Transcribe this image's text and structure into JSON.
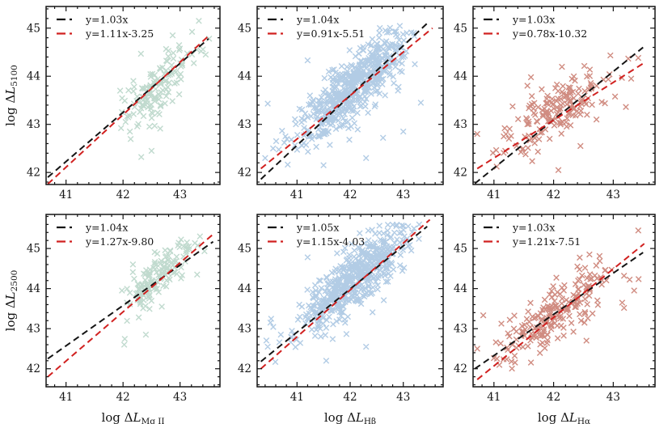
{
  "figure": {
    "background": "#ffffff"
  },
  "chart_data": {
    "type": "scatter",
    "title": "",
    "grid": false,
    "legend_position": "upper-left-inside",
    "colors": {
      "black_line": "#141414",
      "red_line": "#d12120",
      "axis": "#141414",
      "green_marker": "#b5d4c6",
      "blue_marker": "#a5c3e1",
      "red_marker": "#c8786b"
    },
    "row_ylabels": [
      {
        "prefix": "log Δ",
        "symbol": "L",
        "subscript": "5100"
      },
      {
        "prefix": "log Δ",
        "symbol": "L",
        "subscript": "2500"
      }
    ],
    "col_xlabels": [
      {
        "prefix": "log Δ",
        "symbol": "L",
        "subscript": "Mg II"
      },
      {
        "prefix": "log Δ",
        "symbol": "L",
        "subscript": "Hβ"
      },
      {
        "prefix": "log Δ",
        "symbol": "L",
        "subscript": "Hα"
      }
    ],
    "panels": [
      {
        "id": "top-left",
        "row": 0,
        "col": 0,
        "xlim": [
          40.65,
          43.7
        ],
        "ylim": [
          41.75,
          45.45
        ],
        "x_ticks": [
          41,
          42,
          43
        ],
        "y_ticks": [
          42,
          43,
          44,
          45
        ],
        "minor_step": 0.2,
        "marker_color": "#b5d4c6",
        "legend": [
          {
            "label": "y=1.03x",
            "color": "#141414"
          },
          {
            "label": "y=1.11x-3.25",
            "color": "#d12120"
          }
        ],
        "lines": [
          {
            "color": "#141414",
            "x1": 40.68,
            "y1": 41.9,
            "x2": 43.5,
            "y2": 44.78
          },
          {
            "color": "#d12120",
            "x1": 40.68,
            "y1": 41.76,
            "x2": 43.52,
            "y2": 44.86
          }
        ],
        "scatter": {
          "seed": 7,
          "n": 140,
          "x_mean": 42.6,
          "x_sd": 0.33,
          "x_range": [
            41.95,
            43.52
          ],
          "slope": 1.1,
          "y_mid": 43.8,
          "noise_sd": 0.3,
          "y_range": [
            42.25,
            45.0
          ]
        },
        "extra_points": [
          [
            43.33,
            45.15
          ],
          [
            42.87,
            44.85
          ],
          [
            43.37,
            44.52
          ],
          [
            42.32,
            42.32
          ],
          [
            42.5,
            42.45
          ],
          [
            42.12,
            42.85
          ],
          [
            41.95,
            43.7
          ],
          [
            43.45,
            44.45
          ]
        ]
      },
      {
        "id": "top-middle",
        "row": 0,
        "col": 1,
        "xlim": [
          40.25,
          43.75
        ],
        "ylim": [
          41.75,
          45.45
        ],
        "x_ticks": [
          41,
          42,
          43
        ],
        "y_ticks": [
          42,
          43,
          44,
          45
        ],
        "minor_step": 0.2,
        "marker_color": "#a5c3e1",
        "legend": [
          {
            "label": "y=1.04x",
            "color": "#141414"
          },
          {
            "label": "y=0.91x-5.51",
            "color": "#d12120"
          }
        ],
        "lines": [
          {
            "color": "#141414",
            "x1": 40.32,
            "y1": 41.86,
            "x2": 43.45,
            "y2": 45.1
          },
          {
            "color": "#d12120",
            "x1": 40.32,
            "y1": 42.08,
            "x2": 43.55,
            "y2": 45.0
          }
        ],
        "scatter": {
          "seed": 13,
          "n": 560,
          "x_mean": 42.05,
          "x_sd": 0.52,
          "x_range": [
            40.35,
            43.3
          ],
          "slope": 0.95,
          "y_mid": 43.75,
          "noise_sd": 0.33,
          "y_range": [
            41.95,
            45.1
          ]
        },
        "extra_points": [
          [
            41.2,
            44.33
          ],
          [
            40.45,
            43.43
          ],
          [
            43.33,
            43.45
          ],
          [
            42.62,
            42.72
          ],
          [
            43.0,
            42.85
          ],
          [
            40.4,
            42.3
          ],
          [
            40.55,
            42.5
          ],
          [
            42.3,
            42.3
          ],
          [
            41.5,
            42.15
          ],
          [
            43.2,
            44.9
          ]
        ]
      },
      {
        "id": "top-right",
        "row": 0,
        "col": 2,
        "xlim": [
          40.65,
          43.7
        ],
        "ylim": [
          41.75,
          45.45
        ],
        "x_ticks": [
          41,
          42,
          43
        ],
        "y_ticks": [
          42,
          43,
          44,
          45
        ],
        "minor_step": 0.2,
        "marker_color": "#c8786b",
        "legend": [
          {
            "label": "y=1.03x",
            "color": "#141414"
          },
          {
            "label": "y=0.78x-10.32",
            "color": "#d12120"
          }
        ],
        "lines": [
          {
            "color": "#141414",
            "x1": 40.68,
            "y1": 41.77,
            "x2": 43.5,
            "y2": 44.6
          },
          {
            "color": "#d12120",
            "x1": 40.72,
            "y1": 42.08,
            "x2": 43.52,
            "y2": 44.28
          }
        ],
        "scatter": {
          "seed": 21,
          "n": 170,
          "x_mean": 42.05,
          "x_sd": 0.47,
          "x_range": [
            40.7,
            43.45
          ],
          "slope": 0.75,
          "y_mid": 43.3,
          "noise_sd": 0.33,
          "y_range": [
            41.95,
            44.45
          ]
        },
        "extra_points": [
          [
            40.72,
            42.8
          ],
          [
            41.62,
            43.98
          ],
          [
            42.08,
            42.05
          ],
          [
            43.3,
            43.95
          ],
          [
            41.18,
            42.92
          ],
          [
            42.45,
            42.55
          ],
          [
            43.42,
            44.38
          ]
        ]
      },
      {
        "id": "bottom-left",
        "row": 1,
        "col": 0,
        "xlim": [
          40.65,
          43.7
        ],
        "ylim": [
          41.55,
          45.85
        ],
        "x_ticks": [
          41,
          42,
          43
        ],
        "y_ticks": [
          42,
          43,
          44,
          45
        ],
        "minor_step": 0.2,
        "marker_color": "#b5d4c6",
        "legend": [
          {
            "label": "y=1.04x",
            "color": "#141414"
          },
          {
            "label": "y=1.27x-9.80",
            "color": "#d12120"
          }
        ],
        "lines": [
          {
            "color": "#141414",
            "x1": 40.68,
            "y1": 42.25,
            "x2": 43.58,
            "y2": 45.17
          },
          {
            "color": "#d12120",
            "x1": 40.68,
            "y1": 41.8,
            "x2": 43.6,
            "y2": 45.38
          }
        ],
        "scatter": {
          "seed": 29,
          "n": 145,
          "x_mean": 42.6,
          "x_sd": 0.32,
          "x_range": [
            41.98,
            43.5
          ],
          "slope": 1.15,
          "y_mid": 44.3,
          "noise_sd": 0.27,
          "y_range": [
            42.55,
            45.35
          ]
        },
        "extra_points": [
          [
            42.02,
            42.6
          ],
          [
            42.4,
            42.85
          ],
          [
            42.68,
            43.55
          ],
          [
            43.35,
            45.3
          ],
          [
            41.98,
            43.95
          ],
          [
            43.3,
            44.35
          ]
        ]
      },
      {
        "id": "bottom-middle",
        "row": 1,
        "col": 1,
        "xlim": [
          40.25,
          43.75
        ],
        "ylim": [
          41.55,
          45.85
        ],
        "x_ticks": [
          41,
          42,
          43
        ],
        "y_ticks": [
          42,
          43,
          44,
          45
        ],
        "minor_step": 0.2,
        "marker_color": "#a5c3e1",
        "legend": [
          {
            "label": "y=1.05x",
            "color": "#141414"
          },
          {
            "label": "y=1.15x-4.03",
            "color": "#d12120"
          }
        ],
        "lines": [
          {
            "color": "#141414",
            "x1": 40.32,
            "y1": 42.18,
            "x2": 43.45,
            "y2": 45.55
          },
          {
            "color": "#d12120",
            "x1": 40.32,
            "y1": 42.0,
            "x2": 43.5,
            "y2": 45.72
          }
        ],
        "scatter": {
          "seed": 35,
          "n": 560,
          "x_mean": 42.05,
          "x_sd": 0.52,
          "x_range": [
            40.35,
            43.3
          ],
          "slope": 1.05,
          "y_mid": 44.2,
          "noise_sd": 0.36,
          "y_range": [
            41.95,
            45.65
          ]
        },
        "extra_points": [
          [
            41.2,
            44.78
          ],
          [
            40.45,
            42.55
          ],
          [
            43.15,
            44.95
          ],
          [
            40.5,
            43.15
          ],
          [
            42.3,
            42.55
          ],
          [
            41.55,
            42.2
          ],
          [
            43.3,
            45.6
          ]
        ]
      },
      {
        "id": "bottom-right",
        "row": 1,
        "col": 2,
        "xlim": [
          40.65,
          43.7
        ],
        "ylim": [
          41.55,
          45.85
        ],
        "x_ticks": [
          41,
          42,
          43
        ],
        "y_ticks": [
          42,
          43,
          44,
          45
        ],
        "minor_step": 0.2,
        "marker_color": "#c8786b",
        "legend": [
          {
            "label": "y=1.03x",
            "color": "#141414"
          },
          {
            "label": "y=1.21x-7.51",
            "color": "#d12120"
          }
        ],
        "lines": [
          {
            "color": "#141414",
            "x1": 40.68,
            "y1": 42.0,
            "x2": 43.5,
            "y2": 44.9
          },
          {
            "color": "#d12120",
            "x1": 40.72,
            "y1": 41.73,
            "x2": 43.52,
            "y2": 45.12
          }
        ],
        "scatter": {
          "seed": 41,
          "n": 205,
          "x_mean": 42.05,
          "x_sd": 0.48,
          "x_range": [
            40.7,
            43.5
          ],
          "slope": 1.0,
          "y_mid": 43.45,
          "noise_sd": 0.4,
          "y_range": [
            41.9,
            45.5
          ]
        },
        "extra_points": [
          [
            40.72,
            42.5
          ],
          [
            43.15,
            43.65
          ],
          [
            42.55,
            42.7
          ],
          [
            41.05,
            42.25
          ],
          [
            43.42,
            45.45
          ],
          [
            43.35,
            43.95
          ],
          [
            42.6,
            44.85
          ]
        ]
      }
    ]
  }
}
